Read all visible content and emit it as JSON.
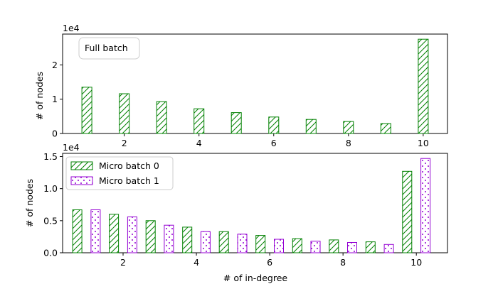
{
  "chart_data": [
    {
      "type": "bar",
      "ylabel": "# of nodes",
      "xlabel": "",
      "sci_multiplier": "1e4",
      "x": [
        1,
        2,
        3,
        4,
        5,
        6,
        7,
        8,
        9,
        10
      ],
      "xticks": [
        "2",
        "4",
        "6",
        "8",
        "10"
      ],
      "xtick_values": [
        2,
        4,
        6,
        8,
        10
      ],
      "xlim": [
        0.35,
        10.65
      ],
      "ylim": [
        0,
        2.9
      ],
      "yticks": [
        "0",
        "1",
        "2"
      ],
      "ytick_values": [
        0,
        1,
        2
      ],
      "legend_position": "upper-left",
      "series": [
        {
          "name": "Full batch",
          "values": [
            1.35,
            1.16,
            0.93,
            0.72,
            0.61,
            0.48,
            0.41,
            0.35,
            0.29,
            2.75
          ],
          "color": "#008000",
          "hatch": "diagonal"
        }
      ]
    },
    {
      "type": "bar",
      "ylabel": "# of nodes",
      "xlabel": "# of in-degree",
      "sci_multiplier": "1e4",
      "x": [
        1,
        2,
        3,
        4,
        5,
        6,
        7,
        8,
        9,
        10
      ],
      "xticks": [
        "2",
        "4",
        "6",
        "8",
        "10"
      ],
      "xtick_values": [
        2,
        4,
        6,
        8,
        10
      ],
      "xlim": [
        0.35,
        10.85
      ],
      "ylim": [
        0,
        1.55
      ],
      "yticks": [
        "0.0",
        "0.5",
        "1.0",
        "1.5"
      ],
      "ytick_values": [
        0,
        0.5,
        1.0,
        1.5
      ],
      "legend_position": "upper-left",
      "series": [
        {
          "name": "Micro batch 0",
          "values": [
            0.67,
            0.6,
            0.5,
            0.4,
            0.33,
            0.27,
            0.22,
            0.2,
            0.17,
            1.27
          ],
          "color": "#008000",
          "hatch": "diagonal"
        },
        {
          "name": "Micro batch 1",
          "values": [
            0.67,
            0.56,
            0.43,
            0.33,
            0.29,
            0.21,
            0.18,
            0.16,
            0.13,
            1.47
          ],
          "color": "#9400d3",
          "hatch": "dots"
        }
      ]
    }
  ]
}
